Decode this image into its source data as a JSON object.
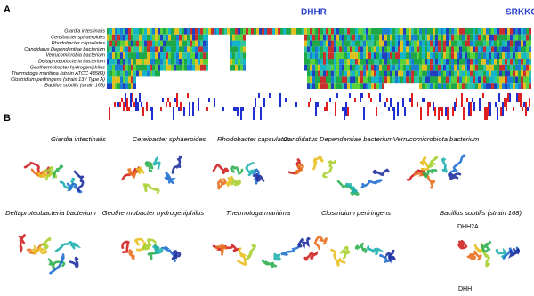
{
  "panel_a": {
    "label": "A",
    "logo_left": "DHHR",
    "logo_right": "SRKKQ",
    "species": [
      "Giardia intestinalis",
      "Cereibacter sphaeroides",
      "Rhodobacter capsulatus",
      "Candidatus Dependentiae bacterium",
      "Verrucomicrobia bacterium",
      "Deltaproteobacteria bacterium",
      "Geothermobacter hydrogeniphilus",
      "Thermotoga maritima (strain ATCC 43589)",
      "Clostridium perfringens (strain 13 / Type A)",
      "Bacillus subtilis (strain 168)"
    ]
  },
  "panel_b": {
    "label": "B",
    "structures": [
      "Giardia intestinalis",
      "Cereibacter sphaeroides",
      "Rhodobacter capsulatus",
      "Candidatus Dependentiae bacterium",
      "Verrucomicrobiota bacterium",
      "Deltaproteobacteria bacterium",
      "Geothermobacter hydrogeniphilus",
      "Thermotoga maritima",
      "Clostridium perfringens",
      "Bacillus subtilis (strain 168)"
    ],
    "annotations": [
      "DHH2A",
      "DHH"
    ]
  }
}
